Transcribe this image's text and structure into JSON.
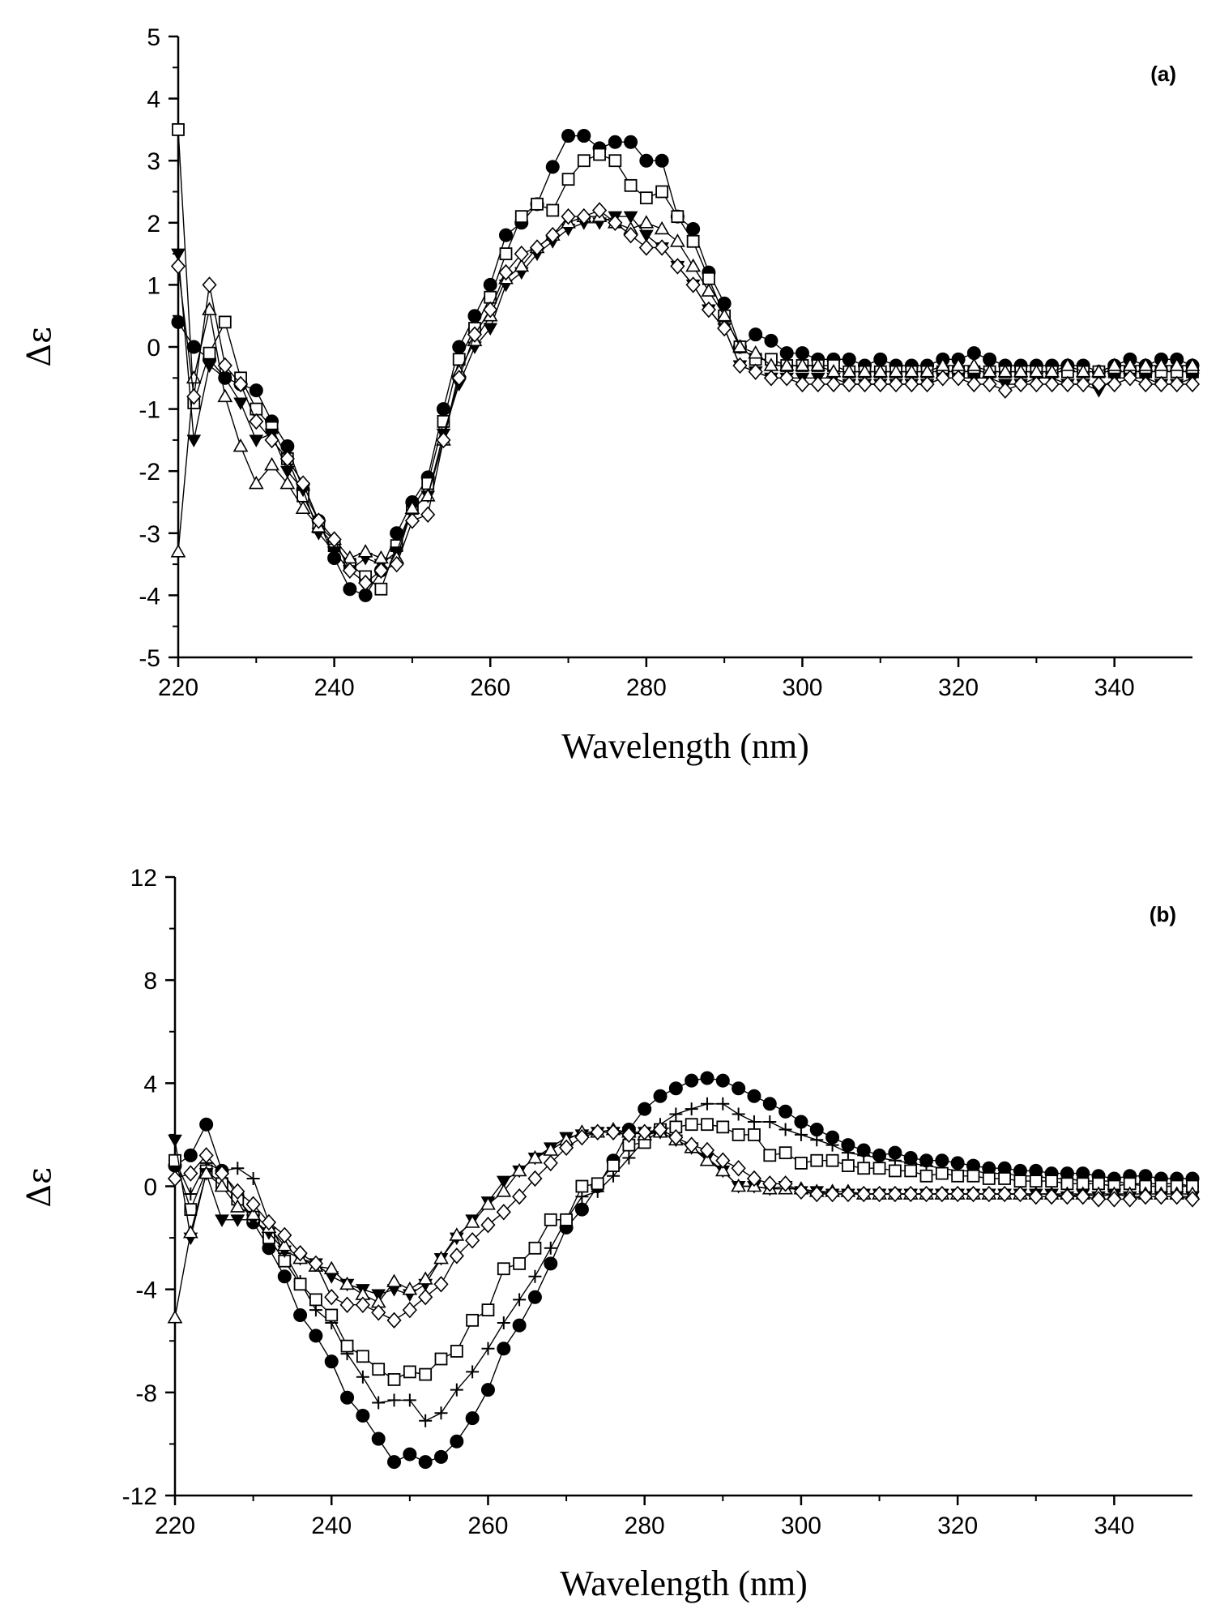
{
  "chart_data": [
    {
      "type": "line",
      "panel_label": "(a)",
      "xlabel": "Wavelength (nm)",
      "ylabel": "Δε",
      "xlim": [
        220,
        350
      ],
      "ylim": [
        -5,
        5
      ],
      "xticks": [
        220,
        240,
        260,
        280,
        300,
        320,
        340
      ],
      "yticks": [
        -5,
        -4,
        -3,
        -2,
        -1,
        0,
        1,
        2,
        3,
        4,
        5
      ],
      "grid": false,
      "x": [
        220,
        222,
        224,
        226,
        228,
        230,
        232,
        234,
        236,
        238,
        240,
        242,
        244,
        246,
        248,
        250,
        252,
        254,
        256,
        258,
        260,
        262,
        264,
        266,
        268,
        270,
        272,
        274,
        276,
        278,
        280,
        282,
        284,
        286,
        288,
        290,
        292,
        294,
        296,
        298,
        300,
        302,
        304,
        306,
        308,
        310,
        312,
        314,
        316,
        318,
        320,
        322,
        324,
        326,
        328,
        330,
        332,
        334,
        336,
        338,
        340,
        342,
        344,
        346,
        348,
        350
      ],
      "series": [
        {
          "marker": "filled-circle",
          "values": [
            0.4,
            0.0,
            -0.2,
            -0.5,
            -0.6,
            -0.7,
            -1.2,
            -1.6,
            -2.3,
            -2.8,
            -3.4,
            -3.9,
            -4.0,
            -3.6,
            -3.0,
            -2.5,
            -2.1,
            -1.0,
            0.0,
            0.5,
            1.0,
            1.8,
            2.0,
            2.3,
            2.9,
            3.4,
            3.4,
            3.2,
            3.3,
            3.3,
            3.0,
            3.0,
            2.1,
            1.9,
            1.2,
            0.7,
            0.0,
            0.2,
            0.1,
            -0.1,
            -0.1,
            -0.2,
            -0.2,
            -0.2,
            -0.3,
            -0.2,
            -0.3,
            -0.3,
            -0.3,
            -0.2,
            -0.2,
            -0.1,
            -0.2,
            -0.3,
            -0.3,
            -0.3,
            -0.3,
            -0.3,
            -0.3,
            -0.4,
            -0.3,
            -0.2,
            -0.3,
            -0.2,
            -0.2,
            -0.3
          ]
        },
        {
          "marker": "open-square",
          "values": [
            3.5,
            -0.9,
            -0.1,
            0.4,
            -0.5,
            -1.0,
            -1.3,
            -1.8,
            -2.4,
            -2.9,
            -3.2,
            -3.5,
            -3.7,
            -3.9,
            -3.2,
            -2.6,
            -2.2,
            -1.2,
            -0.2,
            0.3,
            0.8,
            1.5,
            2.1,
            2.3,
            2.2,
            2.7,
            3.0,
            3.1,
            3.0,
            2.6,
            2.4,
            2.5,
            2.1,
            1.7,
            1.1,
            0.5,
            0.0,
            -0.2,
            -0.2,
            -0.3,
            -0.3,
            -0.3,
            -0.3,
            -0.4,
            -0.4,
            -0.4,
            -0.4,
            -0.4,
            -0.4,
            -0.4,
            -0.4,
            -0.4,
            -0.4,
            -0.4,
            -0.4,
            -0.4,
            -0.4,
            -0.4,
            -0.4,
            -0.4,
            -0.4,
            -0.4,
            -0.4,
            -0.4,
            -0.4,
            -0.4
          ]
        },
        {
          "marker": "filled-triangle-down",
          "values": [
            1.5,
            -1.5,
            -0.3,
            -0.5,
            -0.9,
            -1.5,
            -1.4,
            -2.0,
            -2.3,
            -3.0,
            -3.3,
            -3.6,
            -3.4,
            -3.5,
            -3.3,
            -2.6,
            -2.4,
            -1.4,
            -0.6,
            0.0,
            0.3,
            1.0,
            1.2,
            1.5,
            1.7,
            1.9,
            2.0,
            2.0,
            2.1,
            2.1,
            1.8,
            1.6,
            1.3,
            1.0,
            0.6,
            0.3,
            -0.3,
            -0.4,
            -0.5,
            -0.5,
            -0.5,
            -0.5,
            -0.5,
            -0.6,
            -0.6,
            -0.6,
            -0.6,
            -0.6,
            -0.6,
            -0.5,
            -0.5,
            -0.5,
            -0.5,
            -0.6,
            -0.6,
            -0.5,
            -0.5,
            -0.6,
            -0.6,
            -0.7,
            -0.5,
            -0.5,
            -0.5,
            -0.6,
            -0.6,
            -0.5
          ]
        },
        {
          "marker": "open-triangle-up",
          "values": [
            -3.3,
            -0.5,
            0.6,
            -0.8,
            -1.6,
            -2.2,
            -1.9,
            -2.2,
            -2.6,
            -2.9,
            -3.1,
            -3.4,
            -3.3,
            -3.4,
            -3.4,
            -2.6,
            -2.4,
            -1.5,
            -0.4,
            0.1,
            0.5,
            1.1,
            1.3,
            1.6,
            1.8,
            2.0,
            2.1,
            2.1,
            2.0,
            1.9,
            2.0,
            1.9,
            1.7,
            1.3,
            0.9,
            0.5,
            0.0,
            -0.1,
            -0.3,
            -0.3,
            -0.3,
            -0.3,
            -0.4,
            -0.4,
            -0.4,
            -0.4,
            -0.4,
            -0.4,
            -0.4,
            -0.3,
            -0.3,
            -0.3,
            -0.4,
            -0.4,
            -0.4,
            -0.4,
            -0.4,
            -0.3,
            -0.4,
            -0.4,
            -0.3,
            -0.3,
            -0.3,
            -0.3,
            -0.3,
            -0.3
          ]
        },
        {
          "marker": "open-diamond",
          "values": [
            1.3,
            -0.8,
            1.0,
            -0.3,
            -0.6,
            -1.2,
            -1.5,
            -1.8,
            -2.2,
            -2.8,
            -3.1,
            -3.6,
            -3.8,
            -3.6,
            -3.5,
            -2.8,
            -2.7,
            -1.5,
            -0.5,
            0.2,
            0.6,
            1.2,
            1.5,
            1.6,
            1.8,
            2.1,
            2.1,
            2.2,
            2.0,
            1.8,
            1.6,
            1.6,
            1.3,
            1.0,
            0.6,
            0.3,
            -0.3,
            -0.4,
            -0.5,
            -0.5,
            -0.6,
            -0.6,
            -0.6,
            -0.6,
            -0.6,
            -0.6,
            -0.6,
            -0.6,
            -0.6,
            -0.5,
            -0.5,
            -0.6,
            -0.6,
            -0.7,
            -0.6,
            -0.6,
            -0.6,
            -0.6,
            -0.6,
            -0.6,
            -0.6,
            -0.5,
            -0.6,
            -0.6,
            -0.6,
            -0.6
          ]
        }
      ]
    },
    {
      "type": "line",
      "panel_label": "(b)",
      "xlabel": "Wavelength (nm)",
      "ylabel": "Δε",
      "xlim": [
        220,
        350
      ],
      "ylim": [
        -12,
        12
      ],
      "xticks": [
        220,
        240,
        260,
        280,
        300,
        320,
        340
      ],
      "yticks": [
        -12,
        -8,
        -4,
        0,
        4,
        8,
        12
      ],
      "grid": false,
      "x": [
        220,
        222,
        224,
        226,
        228,
        230,
        232,
        234,
        236,
        238,
        240,
        242,
        244,
        246,
        248,
        250,
        252,
        254,
        256,
        258,
        260,
        262,
        264,
        266,
        268,
        270,
        272,
        274,
        276,
        278,
        280,
        282,
        284,
        286,
        288,
        290,
        292,
        294,
        296,
        298,
        300,
        302,
        304,
        306,
        308,
        310,
        312,
        314,
        316,
        318,
        320,
        322,
        324,
        326,
        328,
        330,
        332,
        334,
        336,
        338,
        340,
        342,
        344,
        346,
        348,
        350
      ],
      "series": [
        {
          "marker": "filled-circle",
          "values": [
            0.8,
            1.2,
            2.4,
            0.6,
            -0.4,
            -1.4,
            -2.4,
            -3.5,
            -5.0,
            -5.8,
            -6.8,
            -8.2,
            -8.9,
            -9.8,
            -10.7,
            -10.4,
            -10.7,
            -10.5,
            -9.9,
            -9.0,
            -7.9,
            -6.3,
            -5.4,
            -4.3,
            -3.0,
            -1.6,
            -0.9,
            0.0,
            1.0,
            2.2,
            3.0,
            3.5,
            3.8,
            4.1,
            4.2,
            4.1,
            3.8,
            3.5,
            3.2,
            2.9,
            2.5,
            2.2,
            1.9,
            1.6,
            1.4,
            1.2,
            1.3,
            1.1,
            1.0,
            1.0,
            0.9,
            0.8,
            0.7,
            0.7,
            0.6,
            0.6,
            0.5,
            0.5,
            0.5,
            0.4,
            0.3,
            0.4,
            0.4,
            0.3,
            0.3,
            0.3
          ]
        },
        {
          "marker": "plus",
          "values": [
            1.0,
            -0.3,
            0.9,
            0.6,
            0.7,
            0.3,
            -1.4,
            -2.6,
            -3.7,
            -4.8,
            -5.3,
            -6.5,
            -7.4,
            -8.4,
            -8.3,
            -8.3,
            -9.1,
            -8.8,
            -7.9,
            -7.2,
            -6.3,
            -5.3,
            -4.4,
            -3.5,
            -2.4,
            -1.3,
            -0.4,
            -0.2,
            0.4,
            1.1,
            1.8,
            2.4,
            2.8,
            3.0,
            3.2,
            3.2,
            2.8,
            2.5,
            2.5,
            2.2,
            2.0,
            1.8,
            1.6,
            1.3,
            1.2,
            1.1,
            1.0,
            0.9,
            0.8,
            0.7,
            0.6,
            0.6,
            0.5,
            0.5,
            0.4,
            0.4,
            0.3,
            0.3,
            0.2,
            0.2,
            0.2,
            0.1,
            0.1,
            0.1,
            0.1,
            0.0
          ]
        },
        {
          "marker": "open-square",
          "values": [
            1.0,
            -0.9,
            0.6,
            0.1,
            -0.5,
            -1.2,
            -2.0,
            -2.9,
            -3.8,
            -4.4,
            -5.0,
            -6.2,
            -6.6,
            -7.1,
            -7.5,
            -7.2,
            -7.3,
            -6.7,
            -6.4,
            -5.2,
            -4.8,
            -3.2,
            -3.0,
            -2.4,
            -1.3,
            -1.3,
            0.0,
            0.1,
            0.8,
            1.6,
            1.7,
            2.2,
            2.3,
            2.4,
            2.4,
            2.3,
            2.0,
            2.0,
            1.2,
            1.3,
            0.9,
            1.0,
            1.0,
            0.8,
            0.7,
            0.7,
            0.6,
            0.6,
            0.4,
            0.5,
            0.4,
            0.4,
            0.3,
            0.3,
            0.2,
            0.2,
            0.2,
            0.1,
            0.1,
            0.1,
            0.0,
            0.1,
            0.0,
            0.0,
            0.0,
            0.0
          ]
        },
        {
          "marker": "filled-triangle-down",
          "values": [
            1.8,
            -2.0,
            0.5,
            -1.3,
            -1.3,
            -1.3,
            -1.8,
            -2.5,
            -2.8,
            -3.0,
            -3.5,
            -3.8,
            -4.0,
            -4.2,
            -4.0,
            -4.2,
            -3.8,
            -2.8,
            -2.0,
            -1.3,
            -0.6,
            0.2,
            0.6,
            1.1,
            1.5,
            1.9,
            2.0,
            2.1,
            2.1,
            2.1,
            2.1,
            2.1,
            1.8,
            1.5,
            1.1,
            0.6,
            0.0,
            0.0,
            -0.1,
            0.0,
            -0.2,
            -0.2,
            -0.3,
            -0.3,
            -0.3,
            -0.3,
            -0.3,
            -0.3,
            -0.3,
            -0.3,
            -0.3,
            -0.3,
            -0.3,
            -0.3,
            -0.3,
            -0.3,
            -0.3,
            -0.4,
            -0.3,
            -0.4,
            -0.3,
            -0.4,
            -0.4,
            -0.4,
            -0.4,
            -0.4
          ]
        },
        {
          "marker": "open-triangle-up",
          "values": [
            -5.1,
            -1.8,
            0.5,
            0.0,
            -0.8,
            -1.1,
            -1.6,
            -2.3,
            -2.8,
            -3.1,
            -3.2,
            -3.8,
            -4.2,
            -4.5,
            -3.7,
            -4.0,
            -3.6,
            -2.8,
            -1.9,
            -1.4,
            -0.7,
            -0.2,
            0.6,
            1.1,
            1.4,
            1.8,
            2.1,
            2.1,
            2.2,
            2.1,
            2.0,
            2.1,
            1.8,
            1.5,
            1.0,
            0.6,
            0.0,
            0.0,
            -0.1,
            -0.1,
            -0.1,
            -0.2,
            -0.2,
            -0.2,
            -0.3,
            -0.3,
            -0.3,
            -0.3,
            -0.3,
            -0.3,
            -0.3,
            -0.3,
            -0.3,
            -0.3,
            -0.3,
            -0.3,
            -0.3,
            -0.3,
            -0.3,
            -0.3,
            -0.3,
            -0.3,
            -0.3,
            -0.3,
            -0.3,
            -0.3
          ]
        },
        {
          "marker": "open-diamond",
          "values": [
            0.3,
            0.5,
            1.2,
            0.5,
            -0.2,
            -0.7,
            -1.4,
            -1.9,
            -2.6,
            -3.0,
            -4.3,
            -4.6,
            -4.6,
            -4.9,
            -5.2,
            -4.8,
            -4.3,
            -3.8,
            -2.7,
            -2.1,
            -1.5,
            -1.0,
            -0.4,
            0.3,
            0.9,
            1.5,
            1.9,
            2.1,
            2.1,
            2.0,
            2.1,
            2.2,
            1.9,
            1.6,
            1.4,
            1.0,
            0.7,
            0.3,
            0.1,
            0.1,
            -0.2,
            -0.3,
            -0.3,
            -0.3,
            -0.3,
            -0.3,
            -0.3,
            -0.3,
            -0.3,
            -0.3,
            -0.3,
            -0.3,
            -0.3,
            -0.3,
            -0.3,
            -0.4,
            -0.4,
            -0.4,
            -0.4,
            -0.5,
            -0.5,
            -0.5,
            -0.4,
            -0.4,
            -0.4,
            -0.5
          ]
        }
      ]
    }
  ]
}
